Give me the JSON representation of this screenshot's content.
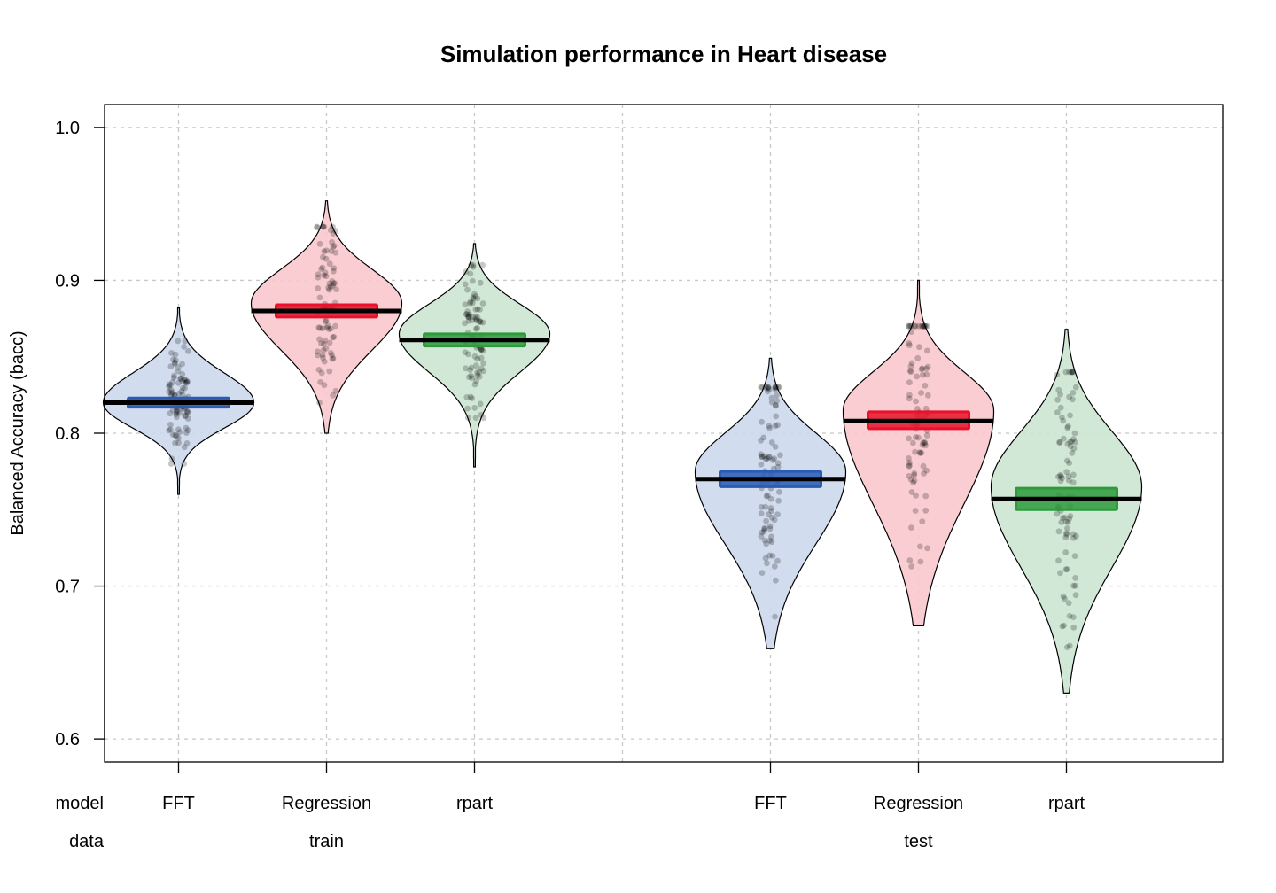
{
  "chart_data": {
    "type": "pirateplot",
    "title": "Simulation performance in Heart disease",
    "ylabel": "Balanced Accuracy (bacc)",
    "ylim": [
      0.585,
      1.015
    ],
    "yticks": [
      0.6,
      0.7,
      0.8,
      0.9,
      1.0
    ],
    "ytick_labels": [
      "0.6",
      "0.7",
      "0.8",
      "0.9",
      "1.0"
    ],
    "grid": true,
    "row_labels": {
      "model": "model",
      "data": "data"
    },
    "groups": [
      {
        "name": "train",
        "models": [
          "FFT",
          "Regression",
          "rpart"
        ]
      },
      {
        "name": "test",
        "models": [
          "FFT",
          "Regression",
          "rpart"
        ]
      }
    ],
    "colors": {
      "FFT": "#2a5bb5",
      "Regression": "#e8122a",
      "rpart": "#2e9a3c"
    },
    "fill_colors": {
      "FFT": "#ccd8ec",
      "Regression": "#f8c8cc",
      "rpart": "#cce6d2"
    },
    "series": [
      {
        "model": "FFT",
        "data": "train",
        "mean": 0.82,
        "band": [
          0.817,
          0.823
        ],
        "min": 0.76,
        "max": 0.882,
        "bulk": [
          0.79,
          0.855
        ],
        "mode": 0.82
      },
      {
        "model": "Regression",
        "data": "train",
        "mean": 0.88,
        "band": [
          0.876,
          0.884
        ],
        "min": 0.8,
        "max": 0.952,
        "bulk": [
          0.83,
          0.925
        ],
        "mode": 0.885
      },
      {
        "model": "rpart",
        "data": "train",
        "mean": 0.861,
        "band": [
          0.857,
          0.865
        ],
        "min": 0.778,
        "max": 0.924,
        "bulk": [
          0.82,
          0.9
        ],
        "mode": 0.865
      },
      {
        "model": "FFT",
        "data": "test",
        "mean": 0.77,
        "band": [
          0.765,
          0.775
        ],
        "min": 0.659,
        "max": 0.849,
        "bulk": [
          0.69,
          0.82
        ],
        "mode": 0.775
      },
      {
        "model": "Regression",
        "data": "test",
        "mean": 0.808,
        "band": [
          0.803,
          0.814
        ],
        "min": 0.674,
        "max": 0.9,
        "bulk": [
          0.705,
          0.86
        ],
        "mode": 0.815
      },
      {
        "model": "rpart",
        "data": "test",
        "mean": 0.757,
        "band": [
          0.75,
          0.764
        ],
        "min": 0.63,
        "max": 0.868,
        "bulk": [
          0.67,
          0.83
        ],
        "mode": 0.765
      }
    ]
  }
}
